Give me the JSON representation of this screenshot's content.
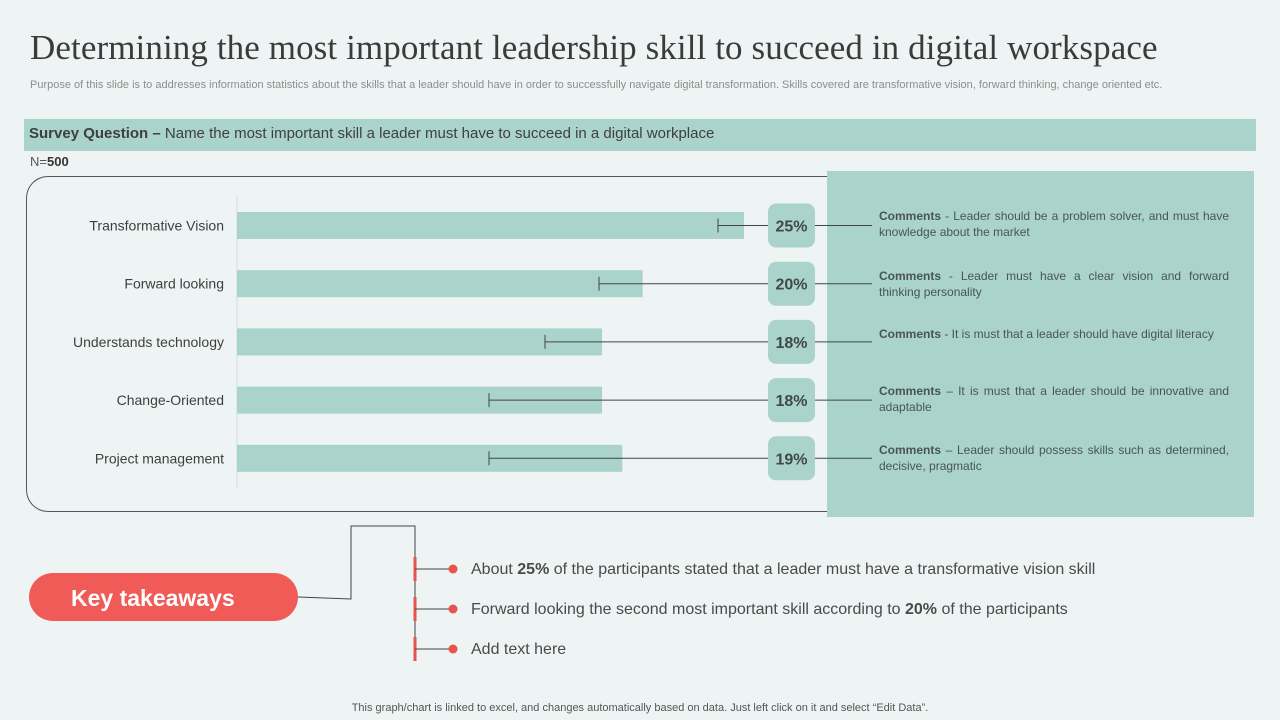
{
  "title": "Determining the most important leadership skill to succeed in digital workspace",
  "subtitle": "Purpose of this slide is to addresses information statistics about the skills that a leader should have in order to successfully navigate digital transformation. Skills covered are transformative vision, forward thinking, change oriented etc.",
  "survey": {
    "label": "Survey Question –",
    "question": "Name the most important skill a leader must have to succeed in a digital workplace",
    "n_prefix": "N=",
    "n_value": "500"
  },
  "chart_data": {
    "type": "bar",
    "orientation": "horizontal",
    "categories": [
      "Transformative Vision",
      "Forward looking",
      "Understands technology",
      "Change-Oriented",
      "Project management"
    ],
    "values": [
      25,
      20,
      18,
      18,
      19
    ],
    "value_labels": [
      "25%",
      "20%",
      "18%",
      "18%",
      "19%"
    ],
    "xlim": [
      0,
      30
    ],
    "grid": false,
    "colors": {
      "bar": "#a9d3cb",
      "badge": "#a9d3cb",
      "line": "#444444"
    }
  },
  "comments": [
    {
      "label": "Comments",
      "text": " - Leader should be a problem solver, and must have knowledge about the market"
    },
    {
      "label": "Comments",
      "text": " - Leader must have a clear vision and forward thinking personality"
    },
    {
      "label": "Comments",
      "text": " - It is must that a leader should have digital literacy"
    },
    {
      "label": "Comments",
      "text": " – It is must that a leader should be innovative and adaptable"
    },
    {
      "label": "Comments",
      "text": " – Leader should possess skills such as determined, decisive, pragmatic"
    }
  ],
  "takeaways": {
    "button_label": "Key takeaways",
    "items": [
      {
        "pre": "About ",
        "bold": "25%",
        "post": " of the participants stated that a leader must have a transformative vision skill"
      },
      {
        "pre": "Forward looking the second most important skill according to ",
        "bold": "20%",
        "post": " of the participants"
      },
      {
        "pre": "Add text here",
        "bold": "",
        "post": ""
      }
    ]
  },
  "footer": "This graph/chart is linked to excel,  and changes automatically based on data. Just left click on it and select “Edit Data”.",
  "colors": {
    "accent": "#f05a57",
    "teal": "#a9d3cb",
    "background": "#eef4f3"
  }
}
